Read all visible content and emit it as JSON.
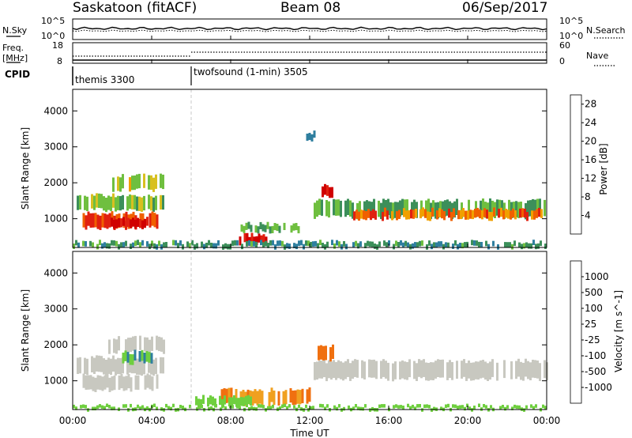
{
  "header": {
    "title": "Saskatoon (fitACF)",
    "beam": "Beam 08",
    "date": "06/Sep/2017"
  },
  "top_strip": {
    "nsky_label": "N.Sky",
    "nsearch_label": "N.Search",
    "freq_label_line1": "Freq.",
    "freq_label_line2": "[MHz]",
    "nave_label": "Nave",
    "cpid_label": "CPID",
    "noise_ticks_left": [
      "10^5",
      "10^0"
    ],
    "noise_ticks_right": [
      "10^5",
      "10^0"
    ],
    "freq_ticks_left": [
      "18",
      "8"
    ],
    "nave_ticks_right": [
      "60",
      "0"
    ],
    "cpid_segments": [
      {
        "name": "themis 3300",
        "start_hour": 0,
        "end_hour": 6
      },
      {
        "name": "twofsound (1-min) 3505",
        "start_hour": 6,
        "end_hour": 24
      }
    ]
  },
  "axes": {
    "xlabel": "Time UT",
    "x_ticks": [
      "00:00",
      "04:00",
      "08:00",
      "12:00",
      "16:00",
      "20:00",
      "00:00"
    ],
    "ylabel": "Slant Range [km]",
    "y_ticks": [
      "1000",
      "2000",
      "3000",
      "4000"
    ]
  },
  "colorbars": {
    "power": {
      "label": "Power [dB]",
      "ticks": [
        "4",
        "8",
        "12",
        "16",
        "20",
        "24",
        "28"
      ],
      "colors": [
        "#1f1ff0",
        "#2a55c8",
        "#2f7f9f",
        "#3c8f5a",
        "#6fbf3f",
        "#d8c020",
        "#f0a000",
        "#f06000",
        "#e02010",
        "#d00000"
      ]
    },
    "velocity": {
      "label": "Velocity [m s^-1]",
      "ticks": [
        "1000",
        "500",
        "100",
        "25",
        "-25",
        "-100",
        "-500",
        "-1000"
      ],
      "colors": [
        "#1f3fb0",
        "#2f7f9f",
        "#3c8f5a",
        "#6fcf3f",
        "#c8c8c0",
        "#f0a020",
        "#f07010",
        "#e02010"
      ]
    }
  },
  "chart_data": [
    {
      "type": "heatmap",
      "title": "Power",
      "x": "Time UT (hours)",
      "xlim": [
        0,
        24
      ],
      "ylim": [
        200,
        4600
      ],
      "value_range": [
        0,
        30
      ],
      "features": [
        {
          "t0": 0.2,
          "t1": 4.6,
          "r0": 1250,
          "r1": 1650,
          "value": 14
        },
        {
          "t0": 2.0,
          "t1": 4.6,
          "r0": 1800,
          "r1": 2200,
          "value": 16
        },
        {
          "t0": 0.5,
          "t1": 4.3,
          "r0": 750,
          "r1": 1150,
          "value": 24
        },
        {
          "t0": 1.8,
          "t1": 3.8,
          "r0": 750,
          "r1": 1000,
          "value": 28
        },
        {
          "t0": 12.2,
          "t1": 24,
          "r0": 1050,
          "r1": 1500,
          "value": 12
        },
        {
          "t0": 14.2,
          "t1": 23.8,
          "r0": 1000,
          "r1": 1250,
          "value": 22
        },
        {
          "t0": 12.6,
          "t1": 13.2,
          "r0": 1600,
          "r1": 1900,
          "value": 28
        },
        {
          "t0": 8.3,
          "t1": 9.8,
          "r0": 300,
          "r1": 550,
          "value": 28
        },
        {
          "t0": 8.5,
          "t1": 11.5,
          "r0": 650,
          "r1": 850,
          "value": 12
        },
        {
          "t0": 11.7,
          "t1": 12.3,
          "r0": 3200,
          "r1": 3400,
          "value": 8
        },
        {
          "t0": 0,
          "t1": 24,
          "r0": 200,
          "r1": 350,
          "value": 10
        }
      ]
    },
    {
      "type": "heatmap",
      "title": "Velocity",
      "x": "Time UT (hours)",
      "xlim": [
        0,
        24
      ],
      "ylim": [
        200,
        4600
      ],
      "value_range": [
        -1000,
        1000
      ],
      "features": [
        {
          "t0": 0.2,
          "t1": 4.6,
          "r0": 1200,
          "r1": 1650,
          "value": 0
        },
        {
          "t0": 1.8,
          "t1": 4.6,
          "r0": 1800,
          "r1": 2200,
          "value": 0
        },
        {
          "t0": 0.5,
          "t1": 4.3,
          "r0": 750,
          "r1": 1150,
          "value": 0
        },
        {
          "t0": 12.2,
          "t1": 24,
          "r0": 1050,
          "r1": 1550,
          "value": 0
        },
        {
          "t0": 12.4,
          "t1": 13.2,
          "r0": 1600,
          "r1": 2000,
          "value": -400
        },
        {
          "t0": 7.5,
          "t1": 12.0,
          "r0": 350,
          "r1": 750,
          "value": -100
        },
        {
          "t0": 6.2,
          "t1": 9.0,
          "r0": 300,
          "r1": 550,
          "value": 60
        },
        {
          "t0": 2.5,
          "t1": 4.0,
          "r0": 1500,
          "r1": 1800,
          "value": 100
        },
        {
          "t0": 0,
          "t1": 24,
          "r0": 200,
          "r1": 300,
          "value": 60
        }
      ]
    }
  ]
}
